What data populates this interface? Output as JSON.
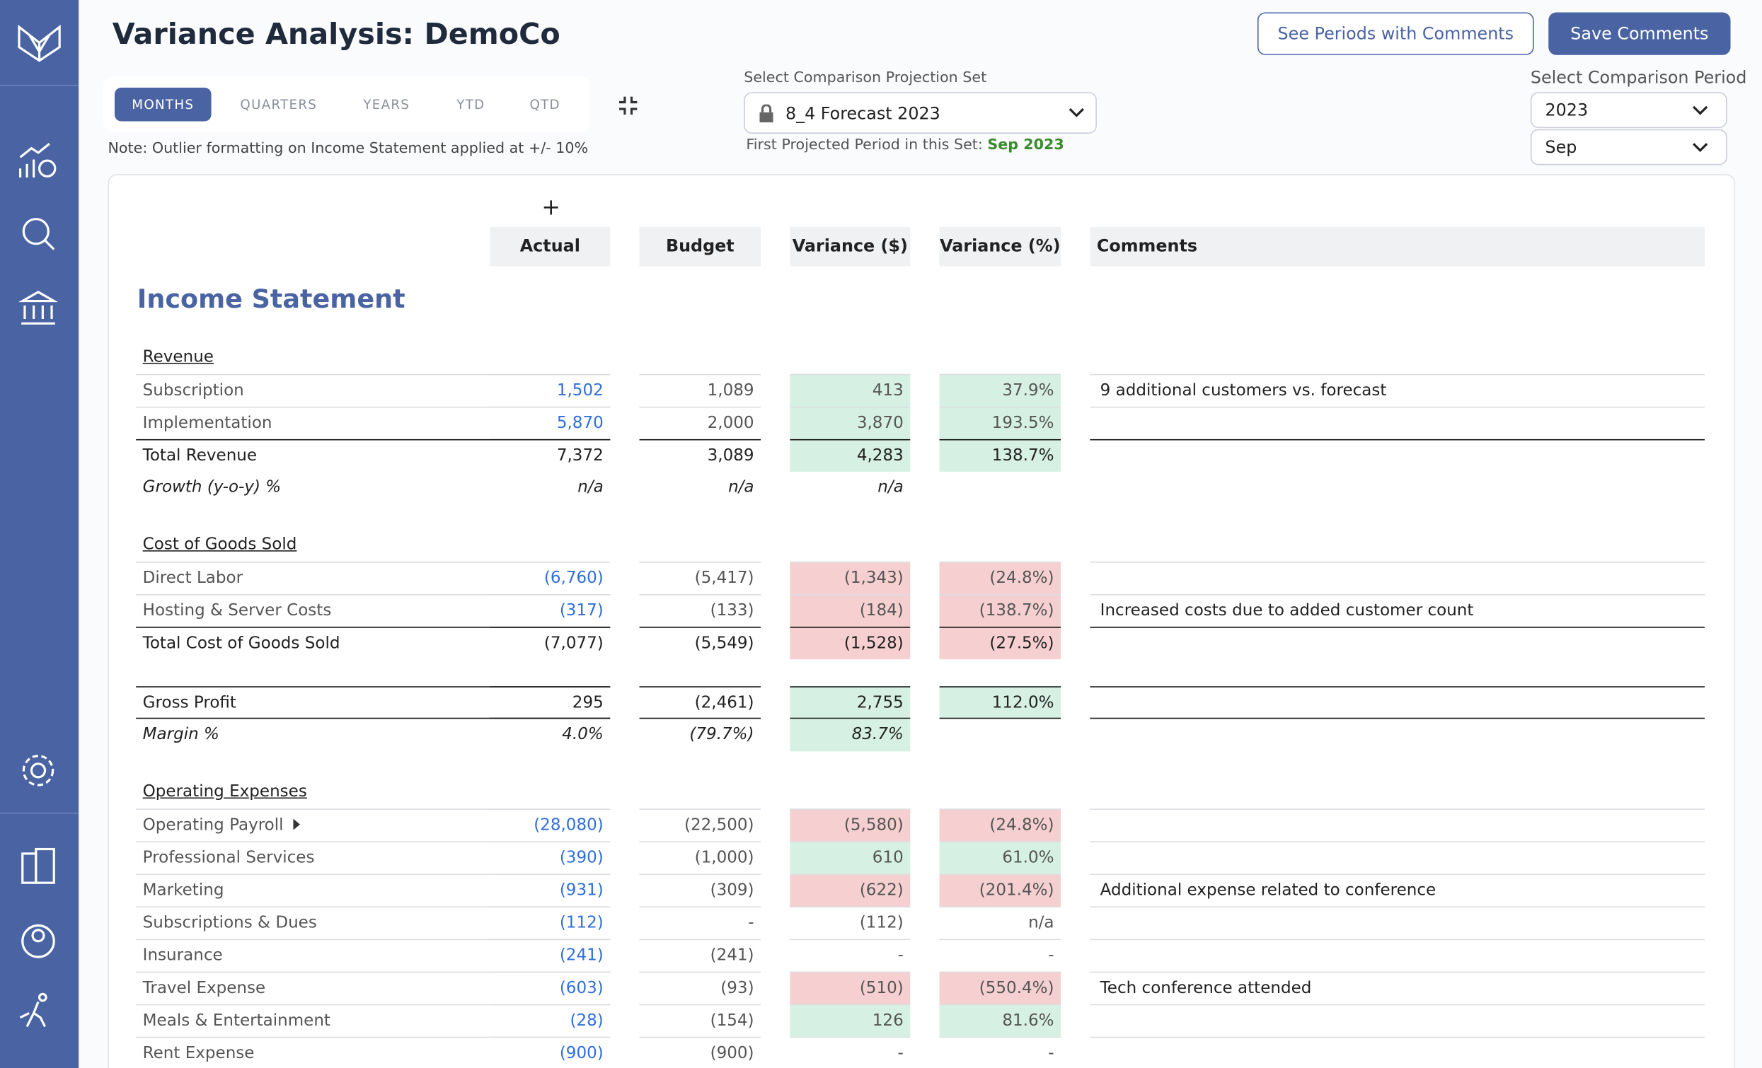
{
  "header": {
    "title": "Variance Analysis: DemoCo",
    "buttons": [
      "See Periods with Comments",
      "Save Comments"
    ]
  },
  "tabs": {
    "items": [
      "MONTHS",
      "QUARTERS",
      "YEARS",
      "YTD",
      "QTD"
    ],
    "active": 0
  },
  "note": "Note: Outlier formatting on Income Statement applied at +/- 10%",
  "projection": {
    "label": "Select Comparison Projection Set",
    "value": "8_4 Forecast 2023",
    "first_label": "First Projected Period in this Set:",
    "first_value": "Sep 2023"
  },
  "period": {
    "label": "Select Comparison Period",
    "year": "2023",
    "month": "Sep"
  },
  "table": {
    "add": "+",
    "columns": [
      "Actual",
      "Budget",
      "Variance ($)",
      "Variance (%)",
      "Comments"
    ],
    "section_title": "Income Statement",
    "groups": [
      {
        "heading": "Revenue",
        "rows": [
          {
            "label": "Subscription",
            "kind": "item",
            "cells": [
              "1,502",
              "1,089",
              "413",
              "37.9%"
            ],
            "highlight": [
              "up",
              "up"
            ],
            "comment": "9 additional customers vs. forecast"
          },
          {
            "label": "Implementation",
            "kind": "item",
            "cells": [
              "5,870",
              "2,000",
              "3,870",
              "193.5%"
            ],
            "highlight": [
              "up",
              "up"
            ]
          },
          {
            "label": "Total Revenue",
            "kind": "total",
            "cells": [
              "7,372",
              "3,089",
              "4,283",
              "138.7%"
            ],
            "highlight": [
              "up",
              "up"
            ]
          },
          {
            "label": "Growth (y-o-y) %",
            "kind": "ratio",
            "cells": [
              "n/a",
              "n/a",
              "n/a"
            ]
          }
        ]
      },
      {
        "heading": "Cost of Goods Sold",
        "rows": [
          {
            "label": "Direct Labor",
            "kind": "item",
            "cells": [
              "(6,760)",
              "(5,417)",
              "(1,343)",
              "(24.8%)"
            ],
            "highlight": [
              "down",
              "down"
            ]
          },
          {
            "label": "Hosting & Server Costs",
            "kind": "item",
            "cells": [
              "(317)",
              "(133)",
              "(184)",
              "(138.7%)"
            ],
            "highlight": [
              "down",
              "down"
            ],
            "comment": "Increased costs due to added customer count"
          },
          {
            "label": "Total Cost of Goods Sold",
            "kind": "total",
            "cells": [
              "(7,077)",
              "(5,549)",
              "(1,528)",
              "(27.5%)"
            ],
            "highlight": [
              "down",
              "down"
            ]
          }
        ]
      },
      {
        "rows": [
          {
            "label": "Gross Profit",
            "kind": "double",
            "cells": [
              "295",
              "(2,461)",
              "2,755",
              "112.0%"
            ],
            "highlight": [
              "up",
              "up"
            ]
          },
          {
            "label": "Margin %",
            "kind": "ratio",
            "cells": [
              "4.0%",
              "(79.7%)",
              "83.7%"
            ],
            "highlight": [
              "up"
            ]
          }
        ]
      },
      {
        "heading": "Operating Expenses",
        "rows": [
          {
            "label": "Operating Payroll",
            "kind": "item",
            "expandable": true,
            "cells": [
              "(28,080)",
              "(22,500)",
              "(5,580)",
              "(24.8%)"
            ],
            "highlight": [
              "down",
              "down"
            ]
          },
          {
            "label": "Professional Services",
            "kind": "item",
            "cells": [
              "(390)",
              "(1,000)",
              "610",
              "61.0%"
            ],
            "highlight": [
              "up",
              "up"
            ]
          },
          {
            "label": "Marketing",
            "kind": "item",
            "cells": [
              "(931)",
              "(309)",
              "(622)",
              "(201.4%)"
            ],
            "highlight": [
              "down",
              "down"
            ],
            "comment": "Additional expense related to conference"
          },
          {
            "label": "Subscriptions & Dues",
            "kind": "item",
            "cells": [
              "(112)",
              "-",
              "(112)",
              "n/a"
            ]
          },
          {
            "label": "Insurance",
            "kind": "item",
            "cells": [
              "(241)",
              "(241)",
              "-",
              "-"
            ]
          },
          {
            "label": "Travel Expense",
            "kind": "item",
            "cells": [
              "(603)",
              "(93)",
              "(510)",
              "(550.4%)"
            ],
            "highlight": [
              "down",
              "down"
            ],
            "comment": "Tech conference attended"
          },
          {
            "label": "Meals & Entertainment",
            "kind": "item",
            "cells": [
              "(28)",
              "(154)",
              "126",
              "81.6%"
            ],
            "highlight": [
              "up",
              "up"
            ]
          },
          {
            "label": "Rent Expense",
            "kind": "item",
            "cells": [
              "(900)",
              "(900)",
              "-",
              "-"
            ]
          }
        ]
      }
    ]
  }
}
